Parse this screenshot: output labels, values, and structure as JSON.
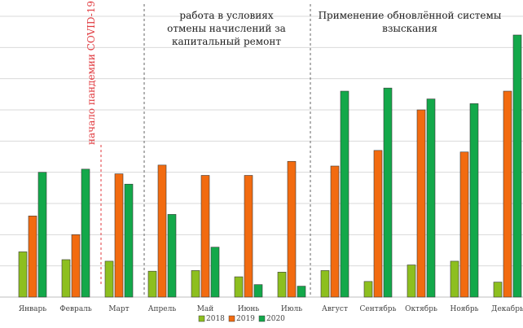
{
  "chart_data": {
    "type": "bar",
    "categories": [
      "Январь",
      "Февраль",
      "Март",
      "Апрель",
      "Май",
      "Июнь",
      "Июль",
      "Август",
      "Сентябрь",
      "Октябрь",
      "Ноябрь",
      "Декабрь"
    ],
    "series": [
      {
        "name": "2018",
        "color": "#8dbf1f",
        "values": [
          14.5,
          12,
          11.5,
          8.3,
          8.5,
          6.5,
          8,
          8.5,
          5,
          10.3,
          11.5,
          4.8
        ]
      },
      {
        "name": "2019",
        "color": "#f26b10",
        "values": [
          26,
          20,
          39.5,
          42.3,
          39,
          39,
          43.5,
          42,
          47,
          60,
          46.5,
          66
        ]
      },
      {
        "name": "2020",
        "color": "#13a84a",
        "values": [
          40,
          41,
          36.2,
          26.5,
          16,
          4,
          3.5,
          66,
          67,
          63.5,
          62,
          84
        ]
      }
    ],
    "ylim": [
      0,
      90
    ],
    "grid": true,
    "legend": "bottom-center",
    "annotations": [
      {
        "id": "covid",
        "lines": [
          "начало пандемии COVID-19"
        ],
        "color": "#e0393e"
      },
      {
        "id": "moratorium",
        "lines": [
          "работа в условиях",
          "отмены начислений за",
          "капитальный ремонт"
        ]
      },
      {
        "id": "new_system",
        "lines": [
          "Применение обновлённой системы",
          "взыскания"
        ]
      }
    ]
  }
}
